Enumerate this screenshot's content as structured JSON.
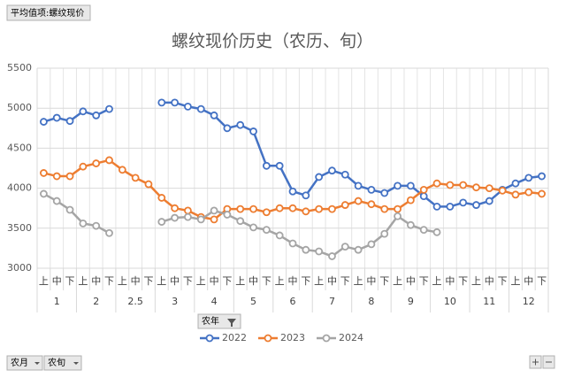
{
  "chart_data": {
    "type": "line",
    "title": "螺纹现价历史（农历、旬）",
    "value_field": "平均值项:螺纹现价",
    "legend_field": "农年",
    "axis_fields": [
      "农月",
      "农旬"
    ],
    "category_groups": [
      {
        "label": "1",
        "categories": [
          "上",
          "中",
          "下"
        ]
      },
      {
        "label": "2",
        "categories": [
          "上",
          "中",
          "下"
        ]
      },
      {
        "label": "2.5",
        "categories": [
          "上",
          "中",
          "下"
        ]
      },
      {
        "label": "3",
        "categories": [
          "上",
          "中",
          "下"
        ]
      },
      {
        "label": "4",
        "categories": [
          "上",
          "中",
          "下"
        ]
      },
      {
        "label": "5",
        "categories": [
          "上",
          "中",
          "下"
        ]
      },
      {
        "label": "6",
        "categories": [
          "上",
          "中",
          "下"
        ]
      },
      {
        "label": "7",
        "categories": [
          "上",
          "中",
          "下"
        ]
      },
      {
        "label": "8",
        "categories": [
          "上",
          "中",
          "下"
        ]
      },
      {
        "label": "9",
        "categories": [
          "上",
          "中",
          "下"
        ]
      },
      {
        "label": "10",
        "categories": [
          "上",
          "中",
          "下"
        ]
      },
      {
        "label": "11",
        "categories": [
          "上",
          "中",
          "下"
        ]
      },
      {
        "label": "12",
        "categories": [
          "上",
          "中",
          "下"
        ]
      }
    ],
    "series": [
      {
        "name": "2022",
        "color": "#4472c4",
        "values": [
          4830,
          4880,
          4840,
          4960,
          4910,
          4990,
          null,
          null,
          null,
          5070,
          5070,
          5020,
          4990,
          4910,
          4750,
          4790,
          4710,
          4280,
          4280,
          3960,
          3910,
          4140,
          4220,
          4170,
          4030,
          3980,
          3940,
          4030,
          4030,
          3900,
          3770,
          3770,
          3820,
          3790,
          3840,
          3980,
          4060,
          4130,
          4150
        ]
      },
      {
        "name": "2023",
        "color": "#ed7d31",
        "values": [
          4190,
          4150,
          4150,
          4270,
          4310,
          4350,
          4230,
          4130,
          4050,
          3880,
          3750,
          3720,
          3640,
          3610,
          3740,
          3740,
          3740,
          3700,
          3750,
          3750,
          3710,
          3740,
          3740,
          3790,
          3840,
          3800,
          3740,
          3740,
          3850,
          3980,
          4060,
          4040,
          4040,
          4010,
          4000,
          3970,
          3920,
          3950,
          3930
        ]
      },
      {
        "name": "2024",
        "color": "#a5a5a5",
        "values": [
          3930,
          3840,
          3730,
          3560,
          3530,
          3440,
          null,
          null,
          null,
          3580,
          3630,
          3640,
          3610,
          3720,
          3670,
          3590,
          3510,
          3480,
          3410,
          3310,
          3230,
          3210,
          3150,
          3270,
          3230,
          3300,
          3430,
          3650,
          3540,
          3480,
          3450,
          null,
          null,
          null,
          null,
          null,
          null,
          null,
          null
        ]
      }
    ],
    "ylim": [
      3000,
      5500
    ],
    "yticks": [
      3000,
      3500,
      4000,
      4500,
      5000,
      5500
    ],
    "grid": true,
    "legend": "bottom"
  }
}
